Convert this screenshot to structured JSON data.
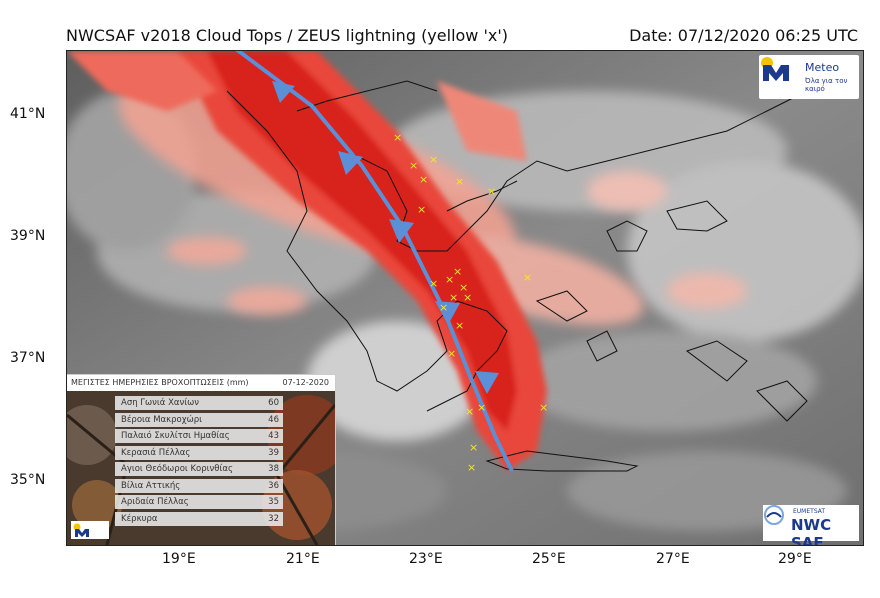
{
  "title": "NWCSAF v2018 Cloud Tops / ZEUS lightning (yellow 'x')",
  "date": "Date: 07/12/2020 06:25 UTC",
  "lat_labels": [
    "41°N",
    "39°N",
    "37°N",
    "35°N"
  ],
  "lon_labels": [
    "19°E",
    "21°E",
    "23°E",
    "25°E",
    "27°E",
    "29°E"
  ],
  "colors": {
    "cloud_high": "#d8201f",
    "cloud_mid": "#f07a6a",
    "lightning": "#f5e23a",
    "front_line": "#5b8fd6"
  },
  "meteo_logo": {
    "name": "Meteo",
    "tagline": "Όλα για τον καιρό"
  },
  "nwcsaf_logo": {
    "small": "EUMETSAT",
    "name": "NWC SAF"
  },
  "rain_table": {
    "header": "ΜΕΓΙΣΤΕΣ ΗΜΕΡΗΣΙΕΣ ΒΡΟΧΟΠΤΩΣΕΙΣ (mm)",
    "date": "07-12-2020",
    "rows": [
      {
        "name": "Αση Γωνιά Χανίων",
        "value": "60"
      },
      {
        "name": "Βέροια Μακροχώρι",
        "value": "46"
      },
      {
        "name": "Παλαιό Σκυλίτσι Ημαθίας",
        "value": "43"
      },
      {
        "name": "Κερασιά Πέλλας",
        "value": "39"
      },
      {
        "name": "Αγιοι Θεόδωροι Κορινθίας",
        "value": "38"
      },
      {
        "name": "Βίλια Αττικής",
        "value": "36"
      },
      {
        "name": "Αριδαία Πέλλας",
        "value": "35"
      },
      {
        "name": "Κέρκυρα",
        "value": "32"
      }
    ]
  }
}
